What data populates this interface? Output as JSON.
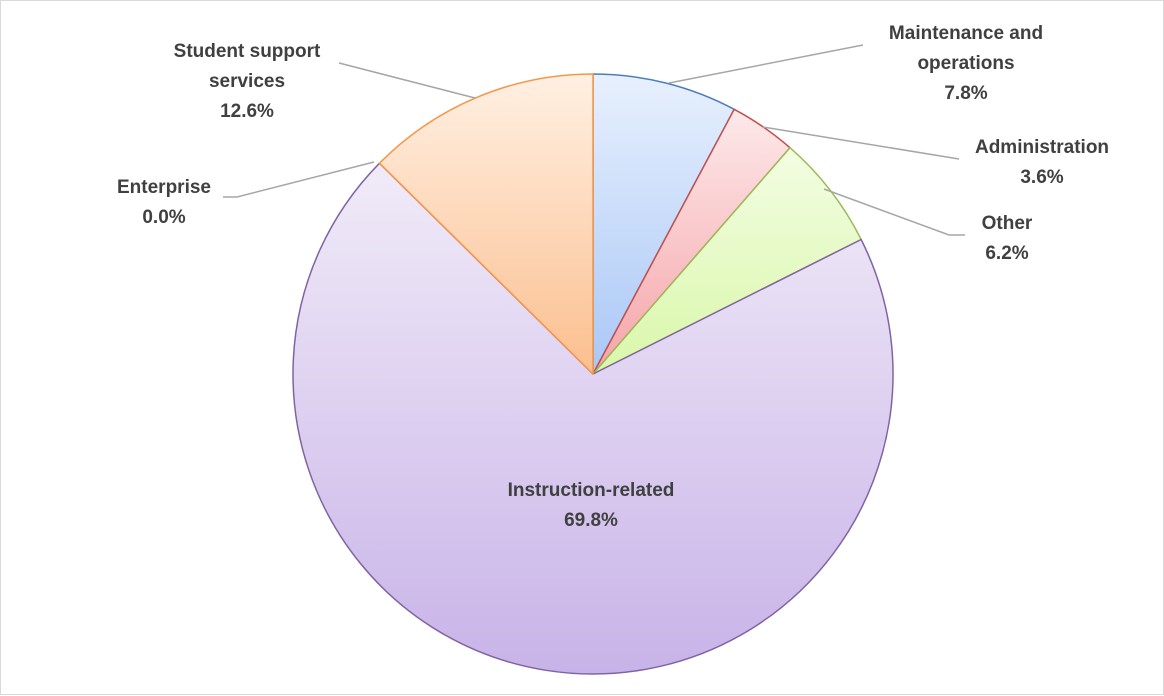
{
  "chart_data": {
    "type": "pie",
    "title": "",
    "legend": "none",
    "slices": [
      {
        "name": "Maintenance and operations",
        "label_lines": [
          "Maintenance and",
          "operations"
        ],
        "value": 7.8,
        "value_label": "7.8%",
        "fill_top": "#e8f0fd",
        "fill_bottom": "#a9c7f6",
        "edge": "#4a7ebb"
      },
      {
        "name": "Administration",
        "label_lines": [
          "Administration"
        ],
        "value": 3.6,
        "value_label": "3.6%",
        "fill_top": "#fde9ea",
        "fill_bottom": "#f5a4a8",
        "edge": "#c0504d"
      },
      {
        "name": "Other",
        "label_lines": [
          "Other"
        ],
        "value": 6.2,
        "value_label": "6.2%",
        "fill_top": "#f3fde3",
        "fill_bottom": "#d9f7a9",
        "edge": "#9bbb59"
      },
      {
        "name": "Instruction-related",
        "label_lines": [
          "Instruction-related"
        ],
        "value": 69.8,
        "value_label": "69.8%",
        "fill_top": "#f1ebf8",
        "fill_bottom": "#c8b3e8",
        "edge": "#8064a2"
      },
      {
        "name": "Enterprise",
        "label_lines": [
          "Enterprise"
        ],
        "value": 0.0,
        "value_label": "0.0%",
        "fill_top": "#ffffff",
        "fill_bottom": "#ffffff",
        "edge": "#8064a2"
      },
      {
        "name": "Student support services",
        "label_lines": [
          "Student support",
          "services"
        ],
        "value": 12.6,
        "value_label": "12.6%",
        "fill_top": "#fff0e3",
        "fill_bottom": "#fbbf8e",
        "edge": "#f79646"
      }
    ]
  }
}
